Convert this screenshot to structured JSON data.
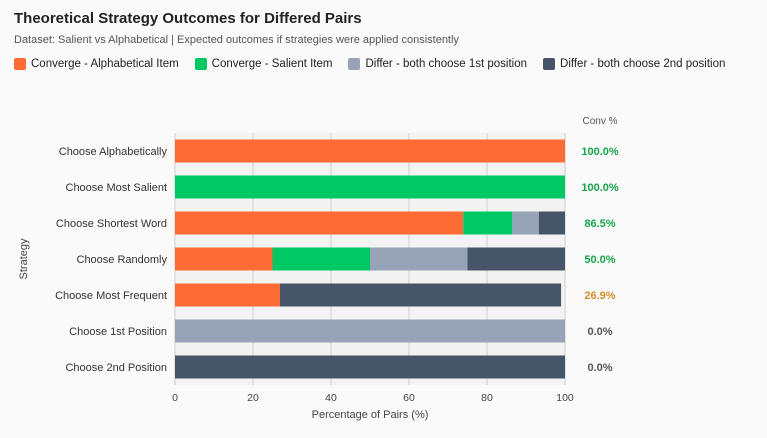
{
  "chart_data": {
    "type": "bar",
    "stacked": true,
    "orientation": "horizontal",
    "title": "Theoretical Strategy Outcomes for Differed Pairs",
    "subtitle": "Dataset: Salient vs Alphabetical | Expected outcomes if strategies were applied consistently",
    "xlabel": "Percentage of Pairs (%)",
    "ylabel": "Strategy",
    "xlim": [
      0,
      100
    ],
    "xticks": [
      "0",
      "20",
      "40",
      "60",
      "80",
      "100"
    ],
    "conv_header": "Conv %",
    "categories": [
      "Choose Alphabetically",
      "Choose Most Salient",
      "Choose Shortest Word",
      "Choose Randomly",
      "Choose Most Frequent",
      "Choose 1st Position",
      "Choose 2nd Position"
    ],
    "series": [
      {
        "name": "Converge - Alphabetical Item",
        "color": "#ff6b35",
        "values": [
          100,
          0,
          73.9,
          25,
          26.9,
          0,
          0
        ]
      },
      {
        "name": "Converge - Salient Item",
        "color": "#00c864",
        "values": [
          0,
          100,
          12.6,
          25,
          0,
          0,
          0
        ]
      },
      {
        "name": "Differ - both choose 1st position",
        "color": "#97a3b6",
        "values": [
          0,
          0,
          6.8,
          25,
          0,
          100,
          0
        ]
      },
      {
        "name": "Differ - both choose 2nd position",
        "color": "#475569",
        "values": [
          0,
          0,
          6.7,
          25,
          72.1,
          0,
          100
        ]
      }
    ],
    "conv": [
      {
        "label": "100.0%",
        "color": "#16a34a"
      },
      {
        "label": "100.0%",
        "color": "#16a34a"
      },
      {
        "label": "86.5%",
        "color": "#16a34a"
      },
      {
        "label": "50.0%",
        "color": "#16a34a"
      },
      {
        "label": "26.9%",
        "color": "#d68a2a"
      },
      {
        "label": "0.0%",
        "color": "#555555"
      },
      {
        "label": "0.0%",
        "color": "#555555"
      }
    ]
  }
}
